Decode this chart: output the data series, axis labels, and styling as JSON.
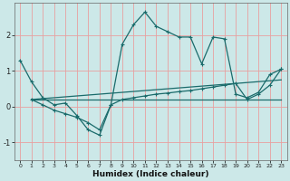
{
  "xlabel": "Humidex (Indice chaleur)",
  "background_color": "#cce8e8",
  "grid_color": "#e8a0a0",
  "line_color": "#1a6b6b",
  "xlim": [
    -0.5,
    23.5
  ],
  "ylim": [
    -1.5,
    2.9
  ],
  "yticks": [
    -1,
    0,
    1,
    2
  ],
  "xticks": [
    0,
    1,
    2,
    3,
    4,
    5,
    6,
    7,
    8,
    9,
    10,
    11,
    12,
    13,
    14,
    15,
    16,
    17,
    18,
    19,
    20,
    21,
    22,
    23
  ],
  "series1_x": [
    0,
    1,
    2,
    3,
    4,
    5,
    6,
    7,
    8,
    9,
    10,
    11,
    12,
    13,
    14,
    15,
    16,
    17,
    18,
    19,
    20,
    21,
    22,
    23
  ],
  "series1_y": [
    1.3,
    0.7,
    0.25,
    0.05,
    0.1,
    -0.25,
    -0.65,
    -0.8,
    0.05,
    1.75,
    2.3,
    2.65,
    2.25,
    2.1,
    1.95,
    1.95,
    1.2,
    1.95,
    1.9,
    0.35,
    0.25,
    0.4,
    0.9,
    1.05
  ],
  "series2_x": [
    1,
    2,
    3,
    4,
    5,
    6,
    7,
    8,
    9,
    10,
    11,
    12,
    13,
    14,
    15,
    16,
    17,
    18,
    19,
    20,
    21,
    22,
    23
  ],
  "series2_y": [
    0.2,
    0.05,
    -0.1,
    -0.2,
    -0.3,
    -0.45,
    -0.65,
    0.05,
    0.2,
    0.25,
    0.3,
    0.35,
    0.38,
    0.42,
    0.45,
    0.5,
    0.55,
    0.6,
    0.65,
    0.2,
    0.35,
    0.6,
    1.05
  ],
  "series3_x": [
    1,
    23
  ],
  "series3_y": [
    0.2,
    0.2
  ],
  "series4_x": [
    1,
    23
  ],
  "series4_y": [
    0.2,
    0.75
  ]
}
